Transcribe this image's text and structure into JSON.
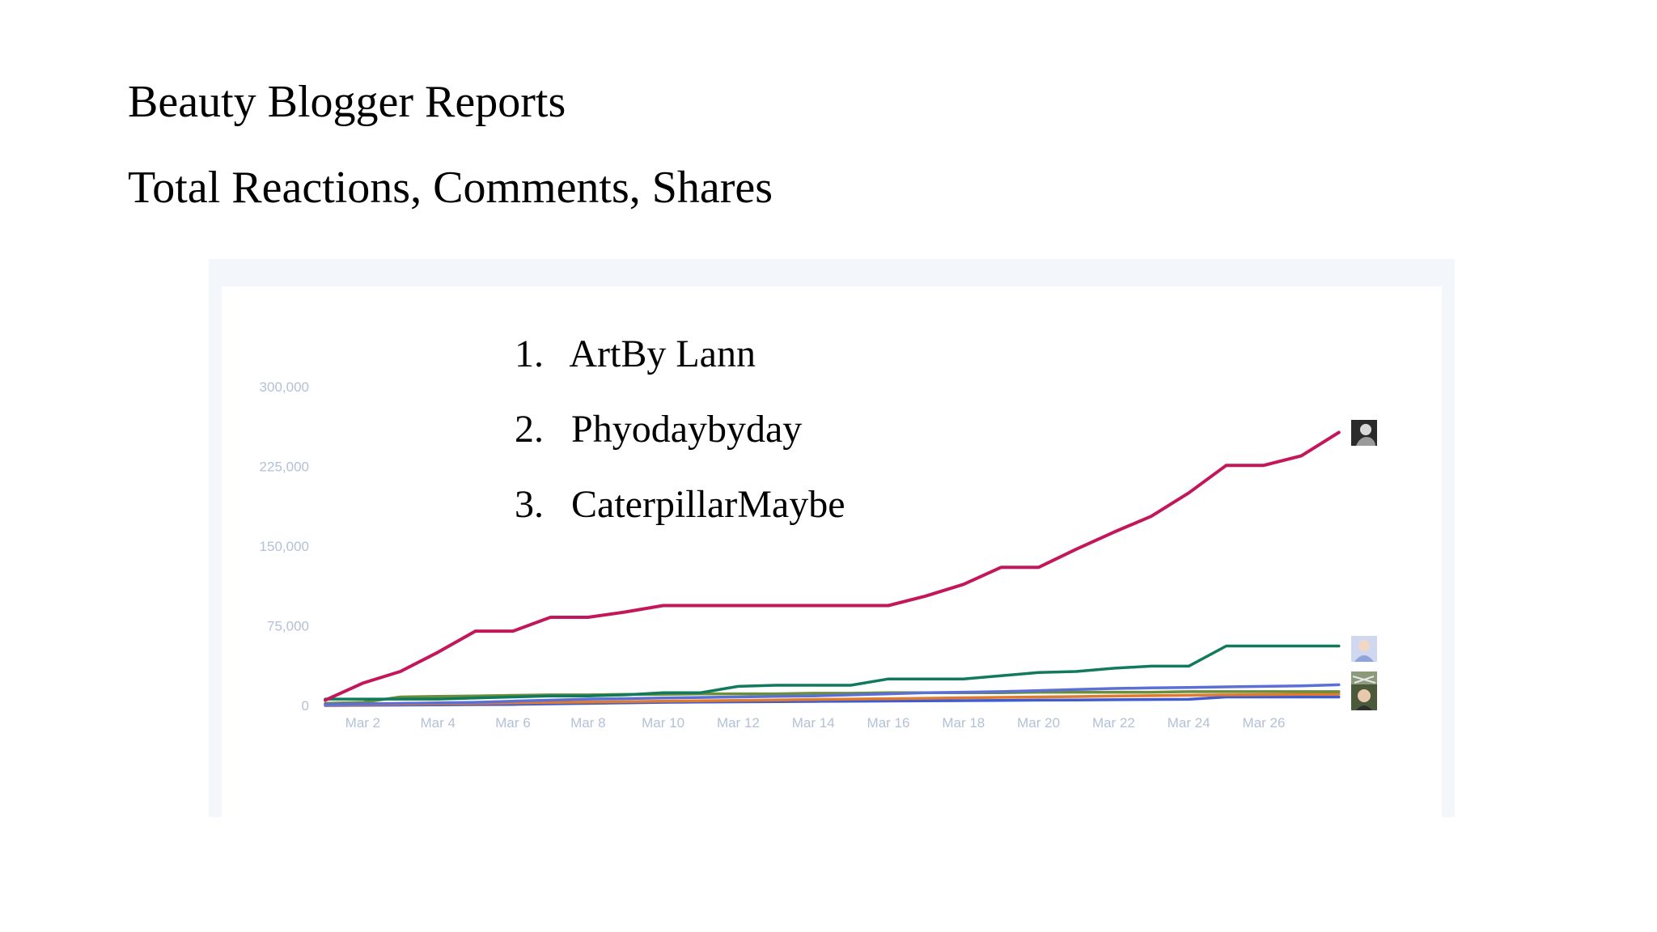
{
  "title": "Beauty Blogger Reports",
  "subtitle": "Total Reactions, Comments, Shares",
  "ranking": [
    {
      "num": "1.",
      "name": "ArtBy Lann"
    },
    {
      "num": "2.",
      "name": "Phyodaybyday"
    },
    {
      "num": "3.",
      "name": "CaterpillarMaybe"
    }
  ],
  "chart_data": {
    "type": "line",
    "title": "",
    "xlabel": "",
    "ylabel": "",
    "x": [
      "Mar 1",
      "Mar 2",
      "Mar 3",
      "Mar 4",
      "Mar 5",
      "Mar 6",
      "Mar 7",
      "Mar 8",
      "Mar 9",
      "Mar 10",
      "Mar 11",
      "Mar 12",
      "Mar 13",
      "Mar 14",
      "Mar 15",
      "Mar 16",
      "Mar 17",
      "Mar 18",
      "Mar 19",
      "Mar 20",
      "Mar 21",
      "Mar 22",
      "Mar 23",
      "Mar 24",
      "Mar 25",
      "Mar 26",
      "Mar 27",
      "Mar 28"
    ],
    "x_tick_labels": [
      "Mar 2",
      "Mar 4",
      "Mar 6",
      "Mar 8",
      "Mar 10",
      "Mar 12",
      "Mar 14",
      "Mar 16",
      "Mar 18",
      "Mar 20",
      "Mar 22",
      "Mar 24",
      "Mar 26"
    ],
    "y_ticks": [
      0,
      75000,
      150000,
      225000,
      300000
    ],
    "y_tick_labels": [
      "0",
      "75,000",
      "150,000",
      "225,000",
      "300,000"
    ],
    "ylim": [
      0,
      300000
    ],
    "grid": false,
    "series": [
      {
        "color": "#c2185b",
        "values": [
          5000,
          21000,
          32000,
          50000,
          70000,
          70000,
          83000,
          83000,
          88000,
          94000,
          94000,
          94000,
          94000,
          94000,
          94000,
          94000,
          103000,
          114000,
          130000,
          130000,
          147000,
          163000,
          178000,
          200000,
          226000,
          226000,
          235000,
          257000
        ]
      },
      {
        "color": "#127a5c",
        "values": [
          6000,
          6000,
          6000,
          6000,
          7000,
          8000,
          9000,
          9000,
          10000,
          12000,
          12000,
          18000,
          19000,
          19000,
          19000,
          25000,
          25000,
          25000,
          28000,
          31000,
          32000,
          35000,
          37000,
          37000,
          56000,
          56000,
          56000,
          56000
        ]
      },
      {
        "color": "#5b6fd6",
        "values": [
          1000,
          1500,
          2000,
          2500,
          3000,
          4000,
          5000,
          6000,
          6500,
          7000,
          7500,
          8000,
          8500,
          9000,
          10000,
          11000,
          12000,
          12500,
          13000,
          14000,
          15000,
          16000,
          16500,
          17000,
          17500,
          18000,
          18500,
          19500
        ]
      },
      {
        "color": "#6a8e3a",
        "values": [
          2000,
          3000,
          8000,
          8500,
          9000,
          9500,
          10000,
          10000,
          10500,
          10500,
          11000,
          11000,
          11000,
          11500,
          11500,
          12000,
          12000,
          12000,
          12000,
          12500,
          12500,
          12500,
          12500,
          13000,
          13000,
          13000,
          13000,
          13000
        ]
      },
      {
        "color": "#e07a2e",
        "values": [
          500,
          800,
          1200,
          1600,
          2000,
          2400,
          2800,
          3200,
          3600,
          4000,
          4400,
          4800,
          5200,
          5600,
          6000,
          6400,
          6800,
          7200,
          7600,
          8000,
          8400,
          8800,
          9200,
          9600,
          10000,
          10200,
          10400,
          10600
        ]
      },
      {
        "color": "#3f5bd0",
        "values": [
          0,
          200,
          400,
          600,
          800,
          1000,
          1500,
          2000,
          2500,
          3000,
          3200,
          3400,
          3600,
          3800,
          4000,
          4200,
          4400,
          4600,
          4800,
          5000,
          5200,
          5400,
          5600,
          5800,
          8000,
          8000,
          8000,
          8000
        ]
      }
    ]
  }
}
